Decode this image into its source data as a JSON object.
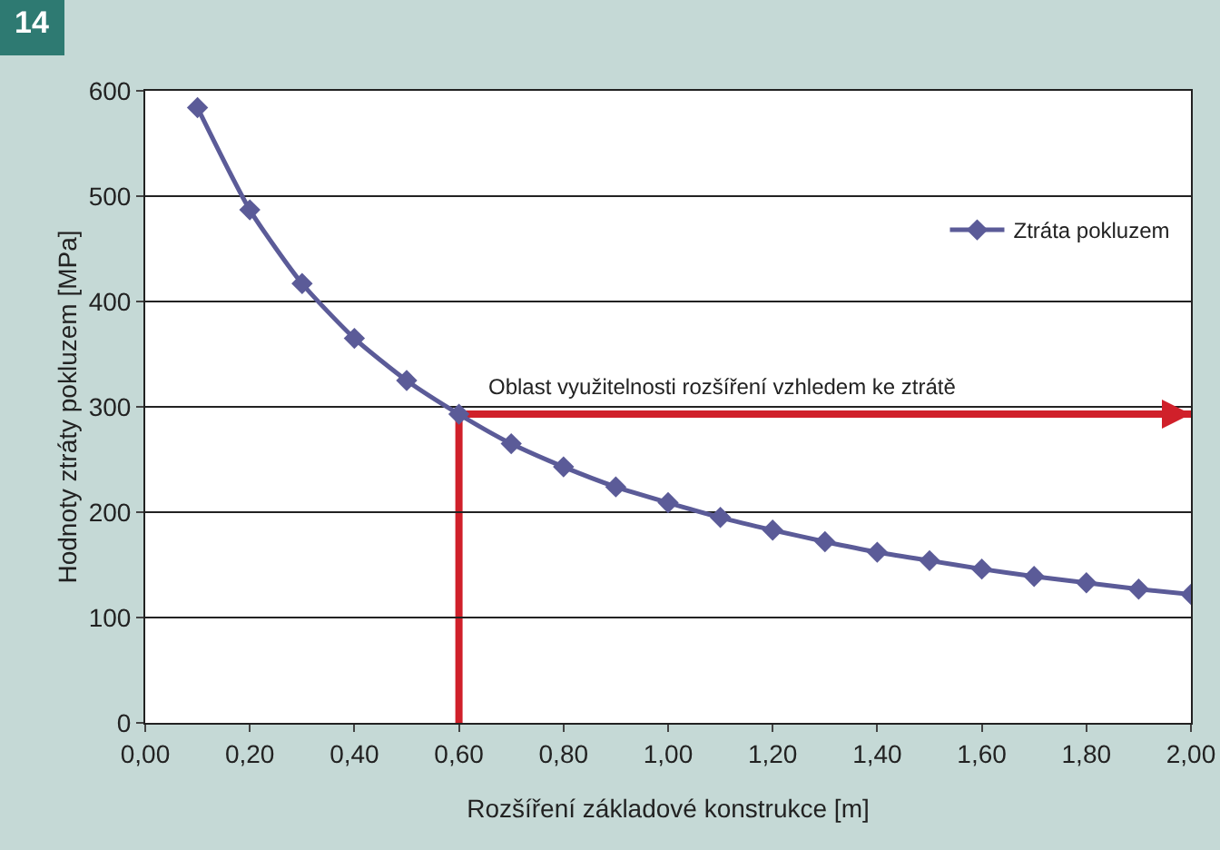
{
  "chart_data": {
    "type": "line",
    "title": "14",
    "xlabel": "Rozšíření základové konstrukce [m]",
    "ylabel": "Hodnoty ztráty pokluzem [MPa]",
    "x": [
      0.1,
      0.2,
      0.3,
      0.4,
      0.5,
      0.6,
      0.7,
      0.8,
      0.9,
      1.0,
      1.1,
      1.2,
      1.3,
      1.4,
      1.5,
      1.6,
      1.7,
      1.8,
      1.9,
      2.0
    ],
    "series": [
      {
        "name": "Ztráta pokluzem",
        "color": "#5b5b98",
        "values": [
          584,
          487,
          417,
          365,
          325,
          293,
          265,
          243,
          224,
          209,
          195,
          183,
          172,
          162,
          154,
          146,
          139,
          133,
          127,
          122
        ]
      }
    ],
    "xlim": [
      0,
      2
    ],
    "xticks": [
      {
        "value": 0,
        "label": "0,00"
      },
      {
        "value": 0.2,
        "label": "0,20"
      },
      {
        "value": 0.4,
        "label": "0,40"
      },
      {
        "value": 0.6,
        "label": "0,60"
      },
      {
        "value": 0.8,
        "label": "0,80"
      },
      {
        "value": 1.0,
        "label": "1,00"
      },
      {
        "value": 1.2,
        "label": "1,20"
      },
      {
        "value": 1.4,
        "label": "1,40"
      },
      {
        "value": 1.6,
        "label": "1,60"
      },
      {
        "value": 1.8,
        "label": "1,80"
      },
      {
        "value": 2.0,
        "label": "2,00"
      }
    ],
    "ylim": [
      0,
      600
    ],
    "yticks": [
      0,
      100,
      200,
      300,
      400,
      500,
      600
    ],
    "ref_lines": [
      {
        "axis": "x",
        "value": 0.6,
        "color": "#d0202a"
      },
      {
        "axis": "y",
        "value": 293,
        "label": "Oblast využitelnosti rozšíření vzhledem ke ztrátě",
        "color": "#d0202a"
      }
    ],
    "grid": "y",
    "legend": "top right",
    "marker": "diamond",
    "line_style": "solid"
  }
}
